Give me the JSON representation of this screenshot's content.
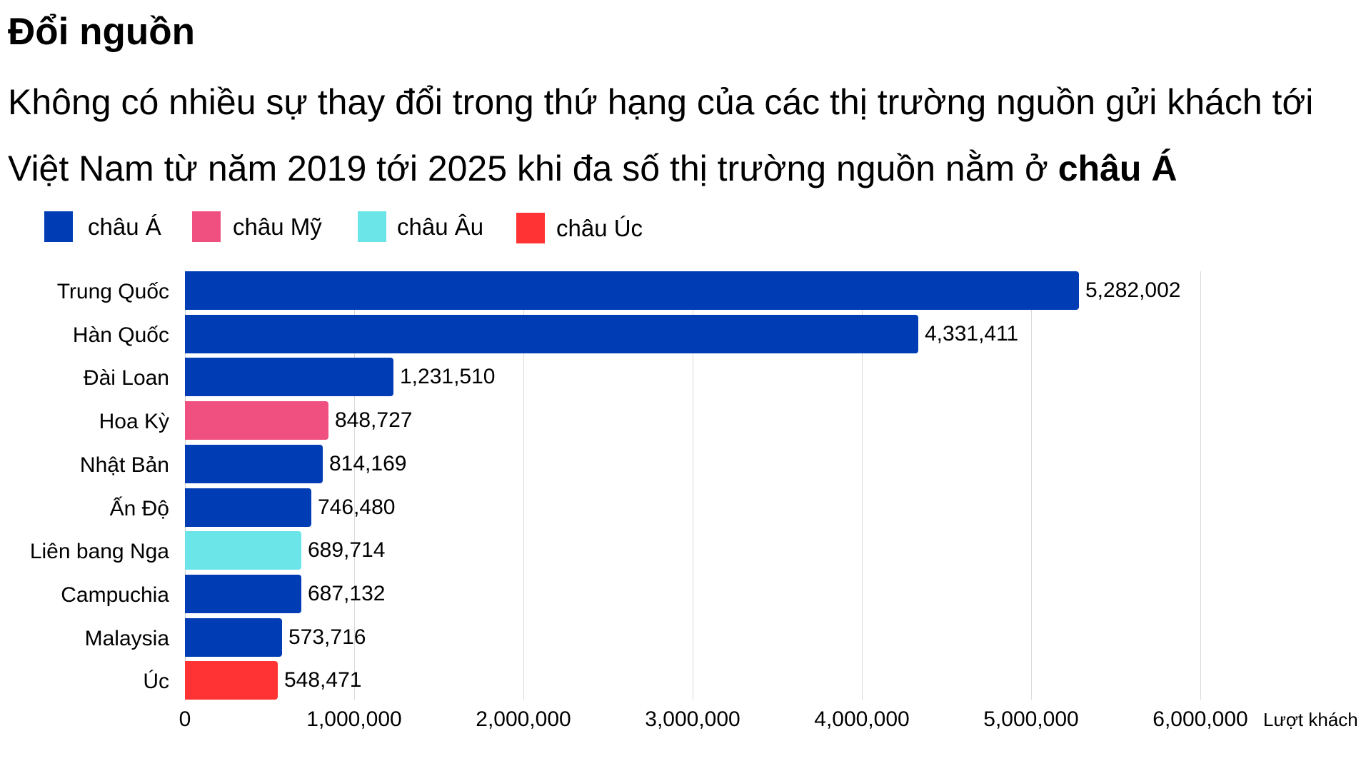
{
  "header": {
    "title": "Đổi nguồn",
    "subtitle_main": "Không có nhiều sự thay đổi trong thứ hạng của các thị trường nguồn gửi khách tới Việt Nam từ năm 2019 tới 2025 khi đa số thị trường nguồn nằm ở ",
    "subtitle_bold": "châu Á"
  },
  "legend": [
    {
      "label": "châu Á",
      "color": "#003cb4"
    },
    {
      "label": "châu Mỹ",
      "color": "#ef507f"
    },
    {
      "label": "châu Âu",
      "color": "#6be5e8"
    },
    {
      "label": "châu Úc",
      "color": "#ff3333"
    }
  ],
  "axis": {
    "ticks": [
      "0",
      "1,000,000",
      "2,000,000",
      "3,000,000",
      "4,000,000",
      "5,000,000",
      "6,000,000"
    ],
    "unit_label": "Lượt khách"
  },
  "chart_data": {
    "type": "bar",
    "orientation": "horizontal",
    "title": "Đổi nguồn",
    "subtitle": "Không có nhiều sự thay đổi trong thứ hạng của các thị trường nguồn gửi khách tới Việt Nam từ năm 2019 tới 2025 khi đa số thị trường nguồn nằm ở châu Á",
    "categories": [
      "Trung Quốc",
      "Hàn Quốc",
      "Đài Loan",
      "Hoa Kỳ",
      "Nhật Bản",
      "Ấn Độ",
      "Liên bang Nga",
      "Campuchia",
      "Malaysia",
      "Úc"
    ],
    "values": [
      5282002,
      4331411,
      1231510,
      848727,
      814169,
      746480,
      689714,
      687132,
      573716,
      548471
    ],
    "value_labels": [
      "5,282,002",
      "4,331,411",
      "1,231,510",
      "848,727",
      "814,169",
      "746,480",
      "689,714",
      "687,132",
      "573,716",
      "548,471"
    ],
    "groups": [
      "châu Á",
      "châu Á",
      "châu Á",
      "châu Mỹ",
      "châu Á",
      "châu Á",
      "châu Âu",
      "châu Á",
      "châu Á",
      "châu Úc"
    ],
    "colors": [
      "#003cb4",
      "#003cb4",
      "#003cb4",
      "#ef507f",
      "#003cb4",
      "#003cb4",
      "#6be5e8",
      "#003cb4",
      "#003cb4",
      "#ff3333"
    ],
    "legend": [
      "châu Á",
      "châu Mỹ",
      "châu Âu",
      "châu Úc"
    ],
    "xlabel": "Lượt khách",
    "ylabel": "",
    "xlim": [
      0,
      6000000
    ],
    "xticks": [
      0,
      1000000,
      2000000,
      3000000,
      4000000,
      5000000,
      6000000
    ],
    "grid": "vertical",
    "legend_position": "top-left"
  }
}
